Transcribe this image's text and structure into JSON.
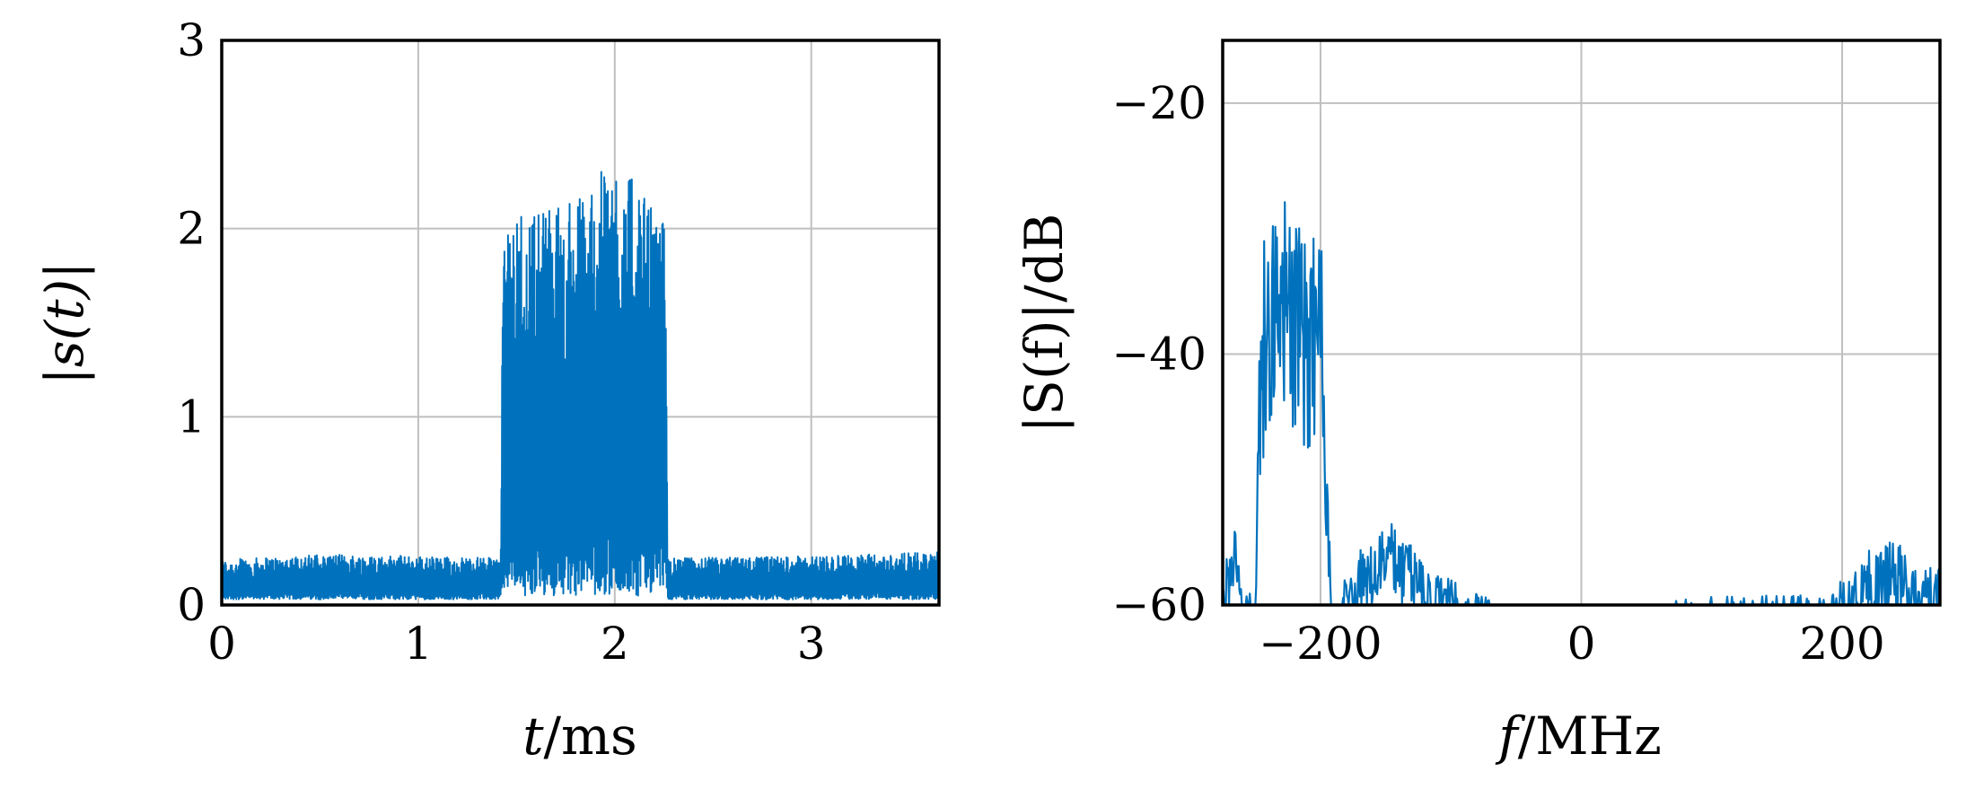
{
  "chart_data": [
    {
      "type": "line",
      "xlabel": "t /ms",
      "ylabel": "|s(t)|",
      "xlim": [
        0,
        3.65
      ],
      "ylim": [
        0,
        3
      ],
      "xticks": [
        0,
        1,
        2,
        3
      ],
      "yticks": [
        0,
        1,
        2,
        3
      ],
      "grid": true,
      "color": "#0072BD",
      "series": [
        {
          "x": [
            0,
            0.5,
            1.0,
            1.42,
            1.43,
            1.5,
            1.8,
            2.0,
            2.2,
            2.26,
            2.27,
            3.0,
            3.65
          ],
          "y_upper": [
            0.24,
            0.27,
            0.26,
            0.25,
            1.9,
            2.1,
            2.15,
            2.4,
            2.1,
            2.05,
            0.25,
            0.26,
            0.28
          ],
          "y_lower": [
            0.03,
            0.03,
            0.03,
            0.03,
            0.08,
            0.05,
            0.05,
            0.05,
            0.05,
            0.07,
            0.03,
            0.03,
            0.03
          ]
        }
      ]
    },
    {
      "type": "line",
      "xlabel": "f /MHz",
      "ylabel": "|S(f)|/dB",
      "xlim": [
        -275,
        275
      ],
      "ylim": [
        -60,
        -15
      ],
      "xticks": [
        -200,
        0,
        200
      ],
      "yticks": [
        -60,
        -40,
        -20
      ],
      "grid": true,
      "color": "#0072BD",
      "series": [
        {
          "x": [
            -275,
            -265,
            -258,
            -250,
            -246,
            -240,
            -230,
            -220,
            -210,
            -200,
            -196,
            -190,
            -175,
            -160,
            -150,
            -130,
            -115,
            -100,
            -80,
            -60,
            185,
            200,
            215,
            230,
            245,
            255
          ],
          "y": [
            -58,
            -52,
            -58,
            -60,
            -32,
            -28,
            -26,
            -29,
            -31,
            -27,
            -48,
            -60,
            -56,
            -55,
            -53,
            -55,
            -57,
            -58,
            -59,
            -60,
            -59,
            -58,
            -56,
            -55,
            -55,
            -57
          ]
        }
      ]
    }
  ],
  "panels": [
    {
      "xticklabels": [
        "0",
        "1",
        "2",
        "3"
      ],
      "yticklabels": [
        "0",
        "1",
        "2",
        "3"
      ],
      "xlabel_var": "t",
      "xlabel_unit": "/ms",
      "ylabel_text": "|s(t)|"
    },
    {
      "xticklabels": [
        "−200",
        "0",
        "200"
      ],
      "yticklabels": [
        "−60",
        "−40",
        "−20"
      ],
      "xlabel_var": "f",
      "xlabel_unit": "/MHz",
      "ylabel_text": "|S(f)|/dB"
    }
  ]
}
